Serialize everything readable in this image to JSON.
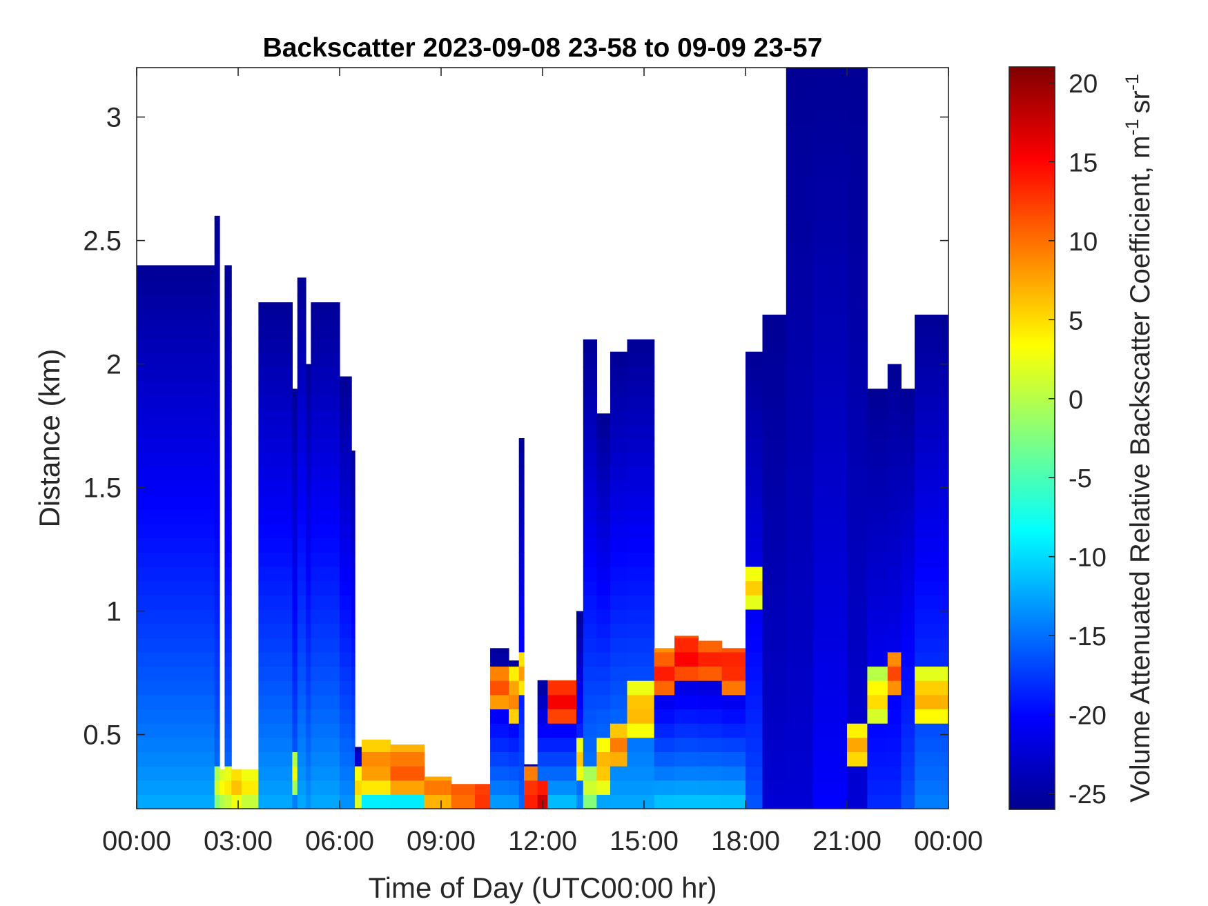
{
  "chart_data": {
    "type": "heatmap",
    "title": "Backscatter 2023-09-08 23-58 to 09-09 23-57",
    "xlabel": "Time of Day (UTC00:00 hr)",
    "ylabel": "Distance (km)",
    "colorbar_label": "Volume Attenuated Relative Backscatter Coefficient, m",
    "colorbar_unit_m_exp": "-1",
    "colorbar_unit_sr": "sr",
    "colorbar_unit_sr_exp": "-1",
    "x_range_hours": [
      0,
      24
    ],
    "y_range_km": [
      0.2,
      3.2
    ],
    "color_range": [
      -26,
      21
    ],
    "x_ticks": [
      {
        "hour": 0,
        "label": "00:00"
      },
      {
        "hour": 3,
        "label": "03:00"
      },
      {
        "hour": 6,
        "label": "06:00"
      },
      {
        "hour": 9,
        "label": "09:00"
      },
      {
        "hour": 12,
        "label": "12:00"
      },
      {
        "hour": 15,
        "label": "15:00"
      },
      {
        "hour": 18,
        "label": "18:00"
      },
      {
        "hour": 21,
        "label": "21:00"
      },
      {
        "hour": 24,
        "label": "00:00"
      }
    ],
    "y_ticks": [
      {
        "value": 0.5,
        "label": "0.5"
      },
      {
        "value": 1,
        "label": "1"
      },
      {
        "value": 1.5,
        "label": "1.5"
      },
      {
        "value": 2,
        "label": "2"
      },
      {
        "value": 2.5,
        "label": "2.5"
      },
      {
        "value": 3,
        "label": "3"
      }
    ],
    "colorbar_ticks": [
      {
        "value": 20,
        "label": "20"
      },
      {
        "value": 15,
        "label": "15"
      },
      {
        "value": 10,
        "label": "10"
      },
      {
        "value": 5,
        "label": "5"
      },
      {
        "value": 0,
        "label": "0"
      },
      {
        "value": -5,
        "label": "-5"
      },
      {
        "value": -10,
        "label": "-10"
      },
      {
        "value": -15,
        "label": "-15"
      },
      {
        "value": -20,
        "label": "-20"
      },
      {
        "value": -25,
        "label": "-25"
      }
    ],
    "colormap": "jet",
    "grid": false,
    "profiles": [
      {
        "start_h": 0.0,
        "end_h": 2.3,
        "top_km": 2.4,
        "surface_value": -12,
        "layer_km": 0.0,
        "layer_value": null
      },
      {
        "start_h": 2.3,
        "end_h": 2.45,
        "top_km": 2.6,
        "surface_value": -14,
        "layer_km": 0.3,
        "layer_value": 2
      },
      {
        "start_h": 2.45,
        "end_h": 2.6,
        "top_km": 0.36,
        "surface_value": -8,
        "layer_km": 0.3,
        "layer_value": 4
      },
      {
        "start_h": 2.6,
        "end_h": 2.8,
        "top_km": 2.4,
        "surface_value": -14,
        "layer_km": 0.3,
        "layer_value": 5
      },
      {
        "start_h": 2.8,
        "end_h": 3.1,
        "top_km": 0.36,
        "surface_value": -6,
        "layer_km": 0.3,
        "layer_value": 7
      },
      {
        "start_h": 3.1,
        "end_h": 3.6,
        "top_km": 0.36,
        "surface_value": -6,
        "layer_km": 0.3,
        "layer_value": 5
      },
      {
        "start_h": 3.6,
        "end_h": 4.6,
        "top_km": 2.25,
        "surface_value": -12,
        "layer_km": 0.0,
        "layer_value": null
      },
      {
        "start_h": 4.6,
        "end_h": 4.75,
        "top_km": 1.9,
        "surface_value": -14,
        "layer_km": 0.35,
        "layer_value": 3
      },
      {
        "start_h": 4.75,
        "end_h": 5.0,
        "top_km": 2.35,
        "surface_value": -12,
        "layer_km": 0.0,
        "layer_value": null
      },
      {
        "start_h": 5.0,
        "end_h": 5.15,
        "top_km": 2.0,
        "surface_value": -13,
        "layer_km": 0.0,
        "layer_value": null
      },
      {
        "start_h": 5.15,
        "end_h": 6.0,
        "top_km": 2.25,
        "surface_value": -12,
        "layer_km": 0.0,
        "layer_value": null
      },
      {
        "start_h": 6.0,
        "end_h": 6.35,
        "top_km": 1.95,
        "surface_value": -13,
        "layer_km": 0.0,
        "layer_value": null
      },
      {
        "start_h": 6.35,
        "end_h": 6.45,
        "top_km": 1.65,
        "surface_value": -13,
        "layer_km": 0.0,
        "layer_value": null
      },
      {
        "start_h": 6.45,
        "end_h": 6.65,
        "top_km": 0.45,
        "surface_value": -8,
        "layer_km": 0.3,
        "layer_value": 6
      },
      {
        "start_h": 6.65,
        "end_h": 7.5,
        "top_km": 0.48,
        "surface_value": -6,
        "layer_km": 0.38,
        "layer_value": 10
      },
      {
        "start_h": 7.5,
        "end_h": 8.5,
        "top_km": 0.46,
        "surface_value": -6,
        "layer_km": 0.36,
        "layer_value": 12
      },
      {
        "start_h": 8.5,
        "end_h": 9.3,
        "top_km": 0.33,
        "surface_value": -4,
        "layer_km": 0.28,
        "layer_value": 10
      },
      {
        "start_h": 9.3,
        "end_h": 10.0,
        "top_km": 0.3,
        "surface_value": -4,
        "layer_km": 0.26,
        "layer_value": 12
      },
      {
        "start_h": 10.0,
        "end_h": 10.45,
        "top_km": 0.3,
        "surface_value": -2,
        "layer_km": 0.25,
        "layer_value": 14
      },
      {
        "start_h": 10.45,
        "end_h": 11.0,
        "top_km": 0.85,
        "surface_value": -12,
        "layer_km": 0.7,
        "layer_value": 12
      },
      {
        "start_h": 11.0,
        "end_h": 11.3,
        "top_km": 0.8,
        "surface_value": -12,
        "layer_km": 0.65,
        "layer_value": 10
      },
      {
        "start_h": 11.3,
        "end_h": 11.45,
        "top_km": 1.7,
        "surface_value": -15,
        "layer_km": 0.75,
        "layer_value": 8
      },
      {
        "start_h": 11.45,
        "end_h": 11.85,
        "top_km": 0.38,
        "surface_value": 2,
        "layer_km": 0.25,
        "layer_value": 15
      },
      {
        "start_h": 11.85,
        "end_h": 12.15,
        "top_km": 0.72,
        "surface_value": -10,
        "layer_km": 0.22,
        "layer_value": 18
      },
      {
        "start_h": 12.15,
        "end_h": 13.0,
        "top_km": 0.72,
        "surface_value": -10,
        "layer_km": 0.64,
        "layer_value": 16
      },
      {
        "start_h": 13.0,
        "end_h": 13.2,
        "top_km": 1.0,
        "surface_value": -13,
        "layer_km": 0.4,
        "layer_value": 6
      },
      {
        "start_h": 13.2,
        "end_h": 13.6,
        "top_km": 2.1,
        "surface_value": -13,
        "layer_km": 0.3,
        "layer_value": 2
      },
      {
        "start_h": 13.6,
        "end_h": 14.0,
        "top_km": 1.8,
        "surface_value": -12,
        "layer_km": 0.38,
        "layer_value": 8
      },
      {
        "start_h": 14.0,
        "end_h": 14.5,
        "top_km": 2.05,
        "surface_value": -12,
        "layer_km": 0.45,
        "layer_value": 10
      },
      {
        "start_h": 14.5,
        "end_h": 15.3,
        "top_km": 2.1,
        "surface_value": -12,
        "layer_km": 0.6,
        "layer_value": 8
      },
      {
        "start_h": 15.3,
        "end_h": 15.9,
        "top_km": 0.85,
        "surface_value": -10,
        "layer_km": 0.75,
        "layer_value": 14
      },
      {
        "start_h": 15.9,
        "end_h": 16.6,
        "top_km": 0.9,
        "surface_value": -10,
        "layer_km": 0.82,
        "layer_value": 16
      },
      {
        "start_h": 16.6,
        "end_h": 17.3,
        "top_km": 0.88,
        "surface_value": -10,
        "layer_km": 0.8,
        "layer_value": 14
      },
      {
        "start_h": 17.3,
        "end_h": 18.0,
        "top_km": 0.85,
        "surface_value": -10,
        "layer_km": 0.78,
        "layer_value": 15
      },
      {
        "start_h": 18.0,
        "end_h": 18.5,
        "top_km": 2.05,
        "surface_value": -16,
        "layer_km": 1.1,
        "layer_value": 6
      },
      {
        "start_h": 18.5,
        "end_h": 19.2,
        "top_km": 2.2,
        "surface_value": -22,
        "layer_km": 0.0,
        "layer_value": null
      },
      {
        "start_h": 19.2,
        "end_h": 20.0,
        "top_km": 3.2,
        "surface_value": -22,
        "layer_km": 0.0,
        "layer_value": null
      },
      {
        "start_h": 20.0,
        "end_h": 21.0,
        "top_km": 3.2,
        "surface_value": -20,
        "layer_km": 0.0,
        "layer_value": null
      },
      {
        "start_h": 21.0,
        "end_h": 21.6,
        "top_km": 3.2,
        "surface_value": -22,
        "layer_km": 0.45,
        "layer_value": 8
      },
      {
        "start_h": 21.6,
        "end_h": 22.2,
        "top_km": 1.9,
        "surface_value": -18,
        "layer_km": 0.65,
        "layer_value": 6
      },
      {
        "start_h": 22.2,
        "end_h": 22.6,
        "top_km": 2.0,
        "surface_value": -18,
        "layer_km": 0.75,
        "layer_value": 12
      },
      {
        "start_h": 22.6,
        "end_h": 23.0,
        "top_km": 1.9,
        "surface_value": -16,
        "layer_km": 0.0,
        "layer_value": null
      },
      {
        "start_h": 23.0,
        "end_h": 24.0,
        "top_km": 2.2,
        "surface_value": -14,
        "layer_km": 0.65,
        "layer_value": 8
      }
    ]
  }
}
